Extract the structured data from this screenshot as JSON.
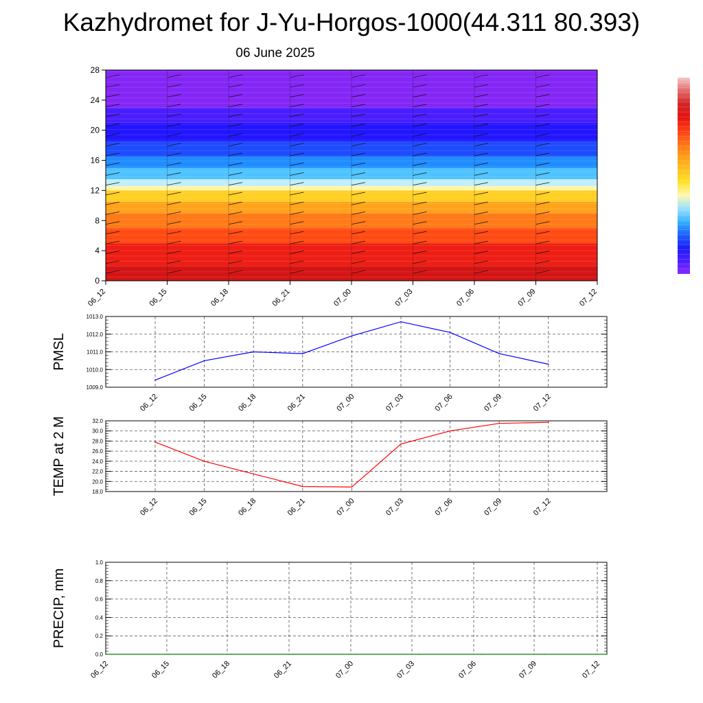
{
  "title": "Kazhydromet for J-Yu-Horgos-1000(44.311 80.393)",
  "subtitle": "06 June 2025",
  "colors": {
    "pmsl_line": "#0000ff",
    "temp_line": "#ff0000",
    "precip_line": "#008000",
    "grid": "#555555",
    "colorbar": [
      "#8b26ff",
      "#4b1fff",
      "#1e1ef6",
      "#1c62ff",
      "#36b3ff",
      "#9be1ff",
      "#fff8b0",
      "#ffe12a",
      "#ffc01f",
      "#ff9c1a",
      "#ff7018",
      "#ff3b14",
      "#e41212",
      "#d42626",
      "#e36b6b",
      "#f3c8c8"
    ]
  },
  "chart_data": [
    {
      "id": "cross-section",
      "type": "heatmap",
      "title": "",
      "xlabel": "",
      "ylabel": "",
      "categories": [
        "06_12",
        "06_15",
        "06_18",
        "06_21",
        "07_00",
        "07_03",
        "07_06",
        "07_09",
        "07_12"
      ],
      "yticks": [
        0,
        4,
        8,
        12,
        16,
        20,
        24,
        28
      ],
      "ylim": [
        0,
        28
      ],
      "color_bands": [
        {
          "from": 0,
          "to": 2,
          "color": "#d41414"
        },
        {
          "from": 2,
          "to": 5,
          "color": "#ee1e14"
        },
        {
          "from": 5,
          "to": 7,
          "color": "#ff4a12"
        },
        {
          "from": 7,
          "to": 9,
          "color": "#ff7a18"
        },
        {
          "from": 9,
          "to": 10.5,
          "color": "#ffa31c"
        },
        {
          "from": 10.5,
          "to": 12,
          "color": "#ffcf25"
        },
        {
          "from": 12,
          "to": 12.6,
          "color": "#fff6a8"
        },
        {
          "from": 12.6,
          "to": 13.5,
          "color": "#bfeeff"
        },
        {
          "from": 13.5,
          "to": 15,
          "color": "#4fc3ff"
        },
        {
          "from": 15,
          "to": 16.5,
          "color": "#1f8cff"
        },
        {
          "from": 16.5,
          "to": 18.5,
          "color": "#1d4cff"
        },
        {
          "from": 18.5,
          "to": 21,
          "color": "#2215ff"
        },
        {
          "from": 21,
          "to": 23,
          "color": "#4a1dff"
        },
        {
          "from": 23,
          "to": 28,
          "color": "#8426f5"
        }
      ],
      "grid": false
    },
    {
      "id": "pmsl",
      "type": "line",
      "ylabel": "PMSL",
      "categories": [
        "06_12",
        "06_15",
        "06_18",
        "06_21",
        "07_00",
        "07_03",
        "07_06",
        "07_09",
        "07_12"
      ],
      "series": [
        {
          "values": [
            1009.4,
            1010.5,
            1011.0,
            1010.9,
            1011.9,
            1012.7,
            1012.1,
            1010.9,
            1010.3
          ]
        }
      ],
      "ylim": [
        1009,
        1013
      ],
      "yticks": [
        "1009.0",
        "1010.0",
        "1011.0",
        "1012.0",
        "1013.0"
      ],
      "grid": true
    },
    {
      "id": "temp",
      "type": "line",
      "ylabel": "TEMP at 2 M",
      "categories": [
        "06_12",
        "06_15",
        "06_18",
        "06_21",
        "07_00",
        "07_03",
        "07_06",
        "07_09",
        "07_12"
      ],
      "series": [
        {
          "values": [
            27.8,
            24.0,
            21.5,
            19.0,
            18.9,
            27.4,
            30.0,
            31.5,
            31.7
          ]
        }
      ],
      "ylim": [
        18,
        32
      ],
      "yticks": [
        "18.0",
        "20.0",
        "22.0",
        "24.0",
        "26.0",
        "28.0",
        "30.0",
        "32.0"
      ],
      "grid": true
    },
    {
      "id": "precip",
      "type": "line",
      "ylabel": "PRECIP, mm",
      "categories": [
        "06_12",
        "06_15",
        "06_18",
        "06_21",
        "07_00",
        "07_03",
        "07_06",
        "07_09",
        "07_12"
      ],
      "series": [
        {
          "values": [
            0,
            0,
            0,
            0,
            0,
            0,
            0,
            0,
            0
          ]
        }
      ],
      "ylim": [
        0,
        1
      ],
      "yticks": [
        "0.0",
        "0.2",
        "0.4",
        "0.6",
        "0.8",
        "1.0"
      ],
      "grid": true
    }
  ]
}
